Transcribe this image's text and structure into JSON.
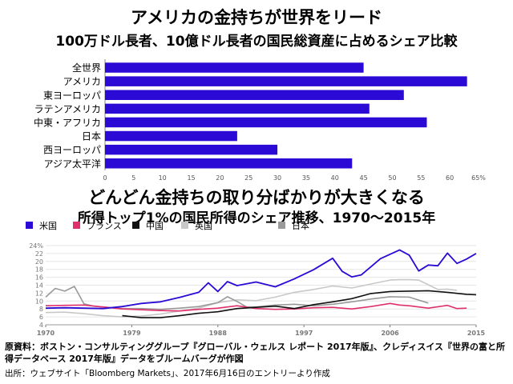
{
  "chart_data": [
    {
      "type": "bar",
      "orientation": "horizontal",
      "title": "アメリカの金持ちが世界をリード",
      "subtitle": "100万ドル長者、10億ドル長者の国民総資産に占めるシェア比較",
      "categories": [
        "全世界",
        "アメリカ",
        "東ヨーロッパ",
        "ラテンアメリカ",
        "中東・アフリカ",
        "日本",
        "西ヨーロッパ",
        "アジア太平洋"
      ],
      "values": [
        45,
        63,
        52,
        46,
        56,
        23,
        30,
        43
      ],
      "xlim": [
        0,
        65
      ],
      "xticks": [
        "0",
        "5",
        "10",
        "15",
        "20",
        "25",
        "30",
        "35",
        "40",
        "45",
        "50",
        "55",
        "60",
        "65%"
      ],
      "bar_color": "#2a0ad4",
      "grid": false
    },
    {
      "type": "line",
      "title": "どんどん金持ちの取り分ばかりが大きくなる",
      "subtitle": "所得トップ1%の国民所得のシェア推移、1970〜2015年",
      "xlim": [
        1970,
        2015
      ],
      "ylim": [
        4,
        24
      ],
      "xticks": [
        "1970",
        "1979",
        "1988",
        "1997",
        "2006",
        "2015"
      ],
      "yticks": [
        "4",
        "6",
        "8",
        "10",
        "12",
        "14",
        "16",
        "18",
        "20",
        "22",
        "24%"
      ],
      "legend_position": "top",
      "grid": true,
      "series": [
        {
          "name": "米国",
          "color": "#2a0ad4",
          "x": [
            1970,
            1972,
            1974,
            1976,
            1978,
            1980,
            1982,
            1984,
            1986,
            1987,
            1988,
            1989,
            1990,
            1992,
            1994,
            1996,
            1998,
            2000,
            2001,
            2002,
            2003,
            2005,
            2007,
            2008,
            2009,
            2010,
            2011,
            2012,
            2013,
            2014,
            2015
          ],
          "y": [
            8.2,
            8.3,
            8.2,
            8.1,
            8.6,
            9.4,
            9.8,
            10.9,
            12.2,
            14.6,
            12.4,
            14.9,
            13.9,
            14.8,
            13.6,
            15.6,
            17.9,
            20.8,
            17.5,
            16.1,
            16.6,
            20.7,
            22.9,
            21.6,
            17.6,
            19.1,
            18.9,
            22.1,
            19.5,
            20.6,
            22.0
          ]
        },
        {
          "name": "フランス",
          "color": "#e0306c",
          "x": [
            1970,
            1972,
            1974,
            1976,
            1978,
            1980,
            1982,
            1984,
            1986,
            1988,
            1990,
            1992,
            1994,
            1996,
            1998,
            2000,
            2002,
            2004,
            2006,
            2007,
            2008,
            2010,
            2012,
            2013,
            2014
          ],
          "y": [
            8.8,
            8.9,
            9.0,
            8.5,
            8.0,
            7.8,
            7.6,
            7.5,
            7.9,
            8.2,
            8.8,
            8.1,
            7.9,
            8.0,
            8.3,
            8.4,
            8.0,
            8.6,
            9.4,
            9.0,
            8.8,
            8.2,
            8.9,
            8.1,
            8.2
          ]
        },
        {
          "name": "中国",
          "color": "#111111",
          "x": [
            1978,
            1980,
            1982,
            1984,
            1986,
            1988,
            1990,
            1992,
            1994,
            1996,
            1998,
            2000,
            2002,
            2004,
            2006,
            2008,
            2010,
            2012,
            2014,
            2015
          ],
          "y": [
            6.3,
            5.8,
            5.8,
            6.3,
            6.9,
            7.3,
            8.1,
            8.4,
            8.7,
            8.1,
            9.1,
            9.8,
            10.6,
            11.9,
            12.4,
            12.5,
            12.6,
            12.2,
            11.7,
            11.6
          ]
        },
        {
          "name": "英国",
          "color": "#c8c8c8",
          "x": [
            1970,
            1972,
            1974,
            1976,
            1978,
            1980,
            1982,
            1984,
            1986,
            1988,
            1990,
            1992,
            1994,
            1996,
            1998,
            2000,
            2002,
            2004,
            2006,
            2007,
            2008,
            2009,
            2011,
            2012,
            2013
          ],
          "y": [
            7.1,
            7.2,
            6.8,
            6.3,
            6.0,
            6.2,
            6.7,
            7.5,
            8.2,
            9.6,
            10.3,
            10.1,
            11.0,
            12.2,
            12.9,
            13.8,
            13.3,
            14.3,
            15.3,
            15.4,
            15.4,
            15.3,
            12.9,
            13.0,
            12.7
          ]
        },
        {
          "name": "日本",
          "color": "#9a9a9a",
          "x": [
            1970,
            1971,
            1972,
            1973,
            1974,
            1975,
            1976,
            1977,
            1978,
            1980,
            1982,
            1984,
            1986,
            1988,
            1989,
            1990,
            1991,
            1992,
            1994,
            1996,
            1998,
            2000,
            2002,
            2004,
            2006,
            2008,
            2010
          ],
          "y": [
            11.0,
            13.2,
            12.5,
            13.7,
            9.3,
            8.7,
            8.5,
            8.3,
            8.1,
            8.1,
            7.9,
            8.2,
            8.6,
            9.6,
            11.1,
            9.9,
            8.5,
            8.5,
            9.0,
            9.2,
            8.8,
            9.2,
            9.8,
            10.5,
            11.1,
            11.0,
            9.5
          ]
        }
      ]
    }
  ],
  "source_note": "原資料：ボストン・コンサルティンググループ『グローバル・ウェルス レポート 2017年版』、クレディスイス『世界の富と所得データベース 2017年版』データをブルームバーグが作図",
  "origin_note": "出所：ウェブサイト「Bloomberg Markets」、2017年6月16日のエントリーより作成"
}
